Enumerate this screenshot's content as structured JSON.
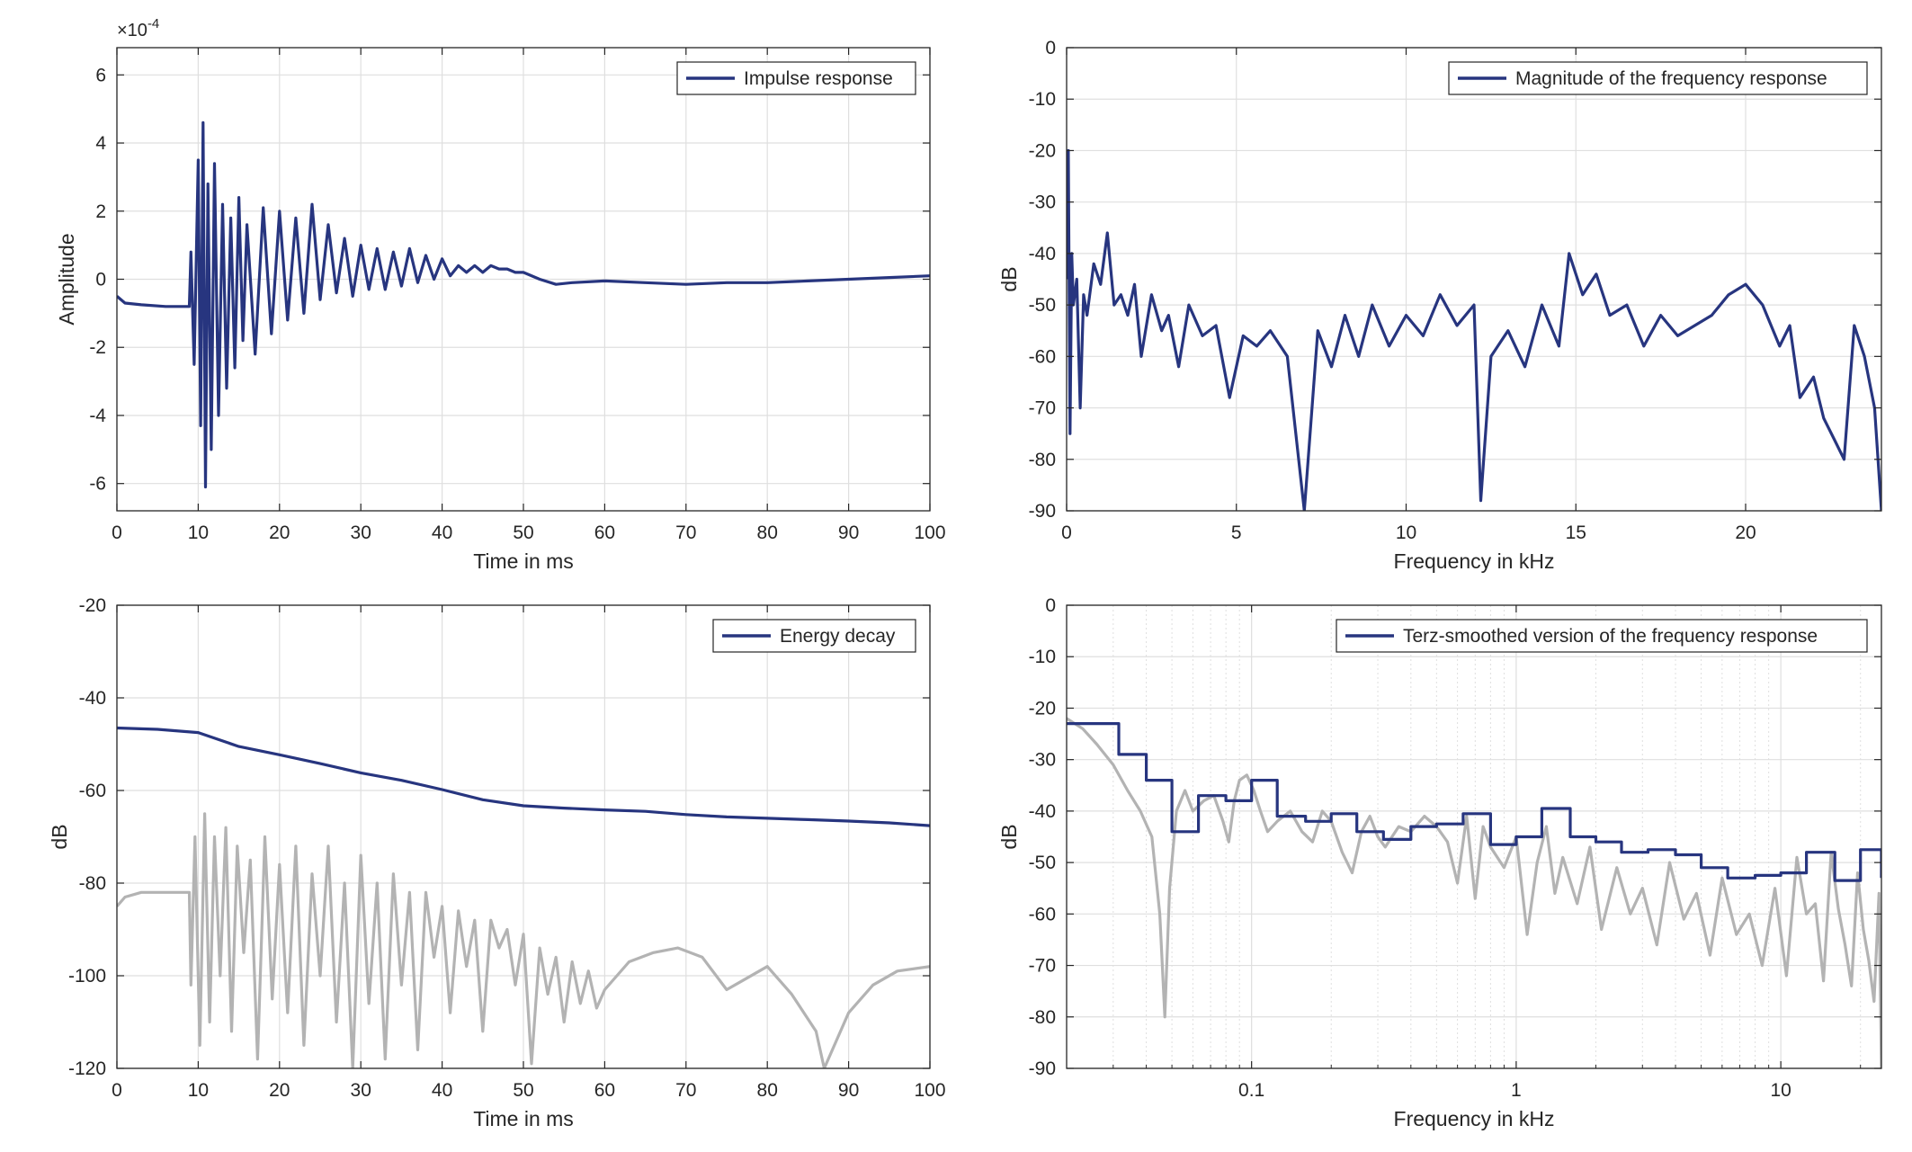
{
  "colors": {
    "series": "#27357f",
    "gray": "#b3b3b3",
    "grid": "#dfdfdf",
    "axis": "#262626"
  },
  "chart_data": [
    {
      "id": "impulse",
      "type": "line",
      "xlabel": "Time in ms",
      "ylabel": "Amplitude",
      "exponent_label": "×10",
      "exponent_power": "-4",
      "xlim": [
        0,
        100
      ],
      "ylim": [
        -6.8,
        6.8
      ],
      "xticks": [
        0,
        10,
        20,
        30,
        40,
        50,
        60,
        70,
        80,
        90,
        100
      ],
      "yticks": [
        -6,
        -4,
        -2,
        0,
        2,
        4,
        6
      ],
      "grid": true,
      "legend": "top-right",
      "series": [
        {
          "name": "Impulse response",
          "color": "series",
          "x": [
            0,
            1,
            3,
            6,
            8.9,
            9.1,
            9.5,
            10,
            10.3,
            10.6,
            10.9,
            11.2,
            11.6,
            12,
            12.5,
            13,
            13.5,
            14,
            14.5,
            15,
            15.5,
            16,
            17,
            18,
            19,
            20,
            21,
            22,
            23,
            24,
            25,
            26,
            27,
            28,
            29,
            30,
            31,
            32,
            33,
            34,
            35,
            36,
            37,
            38,
            39,
            40,
            41,
            42,
            43,
            44,
            45,
            46,
            47,
            48,
            49,
            50,
            52,
            54,
            56,
            60,
            65,
            70,
            75,
            80,
            85,
            90,
            95,
            100
          ],
          "y": [
            -0.5,
            -0.7,
            -0.75,
            -0.8,
            -0.8,
            0.8,
            -2.5,
            3.5,
            -4.3,
            4.6,
            -6.1,
            2.8,
            -5.0,
            3.4,
            -4.0,
            2.2,
            -3.2,
            1.8,
            -2.6,
            2.4,
            -1.8,
            1.6,
            -2.2,
            2.1,
            -1.6,
            2.0,
            -1.2,
            1.8,
            -1.0,
            2.2,
            -0.6,
            1.6,
            -0.4,
            1.2,
            -0.5,
            1.0,
            -0.3,
            0.9,
            -0.3,
            0.8,
            -0.2,
            0.9,
            -0.1,
            0.7,
            0.0,
            0.6,
            0.1,
            0.4,
            0.2,
            0.4,
            0.2,
            0.4,
            0.3,
            0.3,
            0.2,
            0.2,
            0.0,
            -0.15,
            -0.1,
            -0.05,
            -0.1,
            -0.15,
            -0.1,
            -0.1,
            -0.05,
            0.0,
            0.05,
            0.1
          ]
        }
      ]
    },
    {
      "id": "magnitude",
      "type": "line",
      "xlabel": "Frequency in kHz",
      "ylabel": "dB",
      "xlim": [
        0,
        24
      ],
      "ylim": [
        -90,
        0
      ],
      "xticks": [
        0,
        5,
        10,
        15,
        20
      ],
      "yticks": [
        -90,
        -80,
        -70,
        -60,
        -50,
        -40,
        -30,
        -20,
        -10,
        0
      ],
      "grid": true,
      "legend": "top-right",
      "series": [
        {
          "name": "Magnitude of the frequency response",
          "color": "series",
          "x": [
            0,
            0.05,
            0.1,
            0.15,
            0.2,
            0.3,
            0.4,
            0.5,
            0.6,
            0.8,
            1,
            1.2,
            1.4,
            1.6,
            1.8,
            2,
            2.2,
            2.5,
            2.8,
            3,
            3.3,
            3.6,
            4,
            4.4,
            4.8,
            5.2,
            5.6,
            6,
            6.5,
            7,
            7.4,
            7.8,
            8.2,
            8.6,
            9,
            9.5,
            10,
            10.5,
            11,
            11.5,
            12,
            12.2,
            12.5,
            13,
            13.5,
            14,
            14.5,
            14.8,
            15.2,
            15.6,
            16,
            16.5,
            17,
            17.5,
            18,
            18.5,
            19,
            19.5,
            20,
            20.5,
            21,
            21.3,
            21.6,
            22,
            22.3,
            22.6,
            22.9,
            23.2,
            23.5,
            23.8,
            24
          ],
          "y": [
            -45,
            -20,
            -75,
            -40,
            -50,
            -45,
            -70,
            -48,
            -52,
            -42,
            -46,
            -36,
            -50,
            -48,
            -52,
            -46,
            -60,
            -48,
            -55,
            -52,
            -62,
            -50,
            -56,
            -54,
            -68,
            -56,
            -58,
            -55,
            -60,
            -90,
            -55,
            -62,
            -52,
            -60,
            -50,
            -58,
            -52,
            -56,
            -48,
            -54,
            -50,
            -88,
            -60,
            -55,
            -62,
            -50,
            -58,
            -40,
            -48,
            -44,
            -52,
            -50,
            -58,
            -52,
            -56,
            -54,
            -52,
            -48,
            -46,
            -50,
            -58,
            -54,
            -68,
            -64,
            -72,
            -76,
            -80,
            -54,
            -60,
            -70,
            -90
          ]
        }
      ]
    },
    {
      "id": "energy",
      "type": "line",
      "xlabel": "Time in ms",
      "ylabel": "dB",
      "xlim": [
        0,
        100
      ],
      "ylim": [
        -120,
        -20
      ],
      "xticks": [
        0,
        10,
        20,
        30,
        40,
        50,
        60,
        70,
        80,
        90,
        100
      ],
      "yticks": [
        -120,
        -100,
        -80,
        -60,
        -40,
        -20
      ],
      "grid": true,
      "legend": "top-right",
      "series": [
        {
          "name": "Energy decay",
          "color": "series",
          "x": [
            0,
            5,
            10,
            15,
            20,
            25,
            30,
            35,
            40,
            45,
            50,
            55,
            60,
            65,
            70,
            75,
            80,
            85,
            90,
            95,
            100
          ],
          "y": [
            -46.5,
            -46.8,
            -47.5,
            -50.5,
            -52.3,
            -54.2,
            -56.2,
            -57.8,
            -59.8,
            -62.0,
            -63.3,
            -63.8,
            -64.2,
            -64.5,
            -65.2,
            -65.7,
            -66.0,
            -66.3,
            -66.6,
            -67.0,
            -67.6
          ]
        },
        {
          "name": "",
          "color": "gray",
          "x": [
            0,
            1,
            3,
            6,
            8.9,
            9.1,
            9.6,
            10.2,
            10.8,
            11.4,
            12,
            12.7,
            13.4,
            14.1,
            14.8,
            15.6,
            16.4,
            17.3,
            18.2,
            19.1,
            20,
            21,
            22,
            23,
            24,
            25,
            26,
            27,
            28,
            29,
            30,
            31,
            32,
            33,
            34,
            35,
            36,
            37,
            38,
            39,
            40,
            41,
            42,
            43,
            44,
            45,
            46,
            47,
            48,
            49,
            50,
            51,
            52,
            53,
            54,
            55,
            56,
            57,
            58,
            59,
            60,
            63,
            66,
            69,
            72,
            75,
            77,
            80,
            83,
            86,
            87,
            90,
            93,
            96,
            100
          ],
          "y": [
            -85,
            -83,
            -82,
            -82,
            -82,
            -102,
            -70,
            -115,
            -65,
            -110,
            -70,
            -100,
            -68,
            -112,
            -72,
            -95,
            -75,
            -118,
            -70,
            -105,
            -76,
            -108,
            -72,
            -115,
            -78,
            -100,
            -72,
            -110,
            -80,
            -120,
            -74,
            -106,
            -80,
            -118,
            -78,
            -102,
            -82,
            -116,
            -82,
            -96,
            -85,
            -108,
            -86,
            -98,
            -88,
            -112,
            -88,
            -94,
            -90,
            -102,
            -91,
            -119,
            -94,
            -104,
            -96,
            -110,
            -97,
            -106,
            -99,
            -107,
            -103,
            -97,
            -95,
            -94,
            -96,
            -103,
            -101,
            -98,
            -104,
            -112,
            -120,
            -108,
            -102,
            -99,
            -98
          ]
        }
      ]
    },
    {
      "id": "terz",
      "type": "line",
      "xscale": "log",
      "xlabel": "Frequency in kHz",
      "ylabel": "dB",
      "xlim": [
        0.02,
        24
      ],
      "ylim": [
        -90,
        0
      ],
      "xticks": [
        0.1,
        1,
        10
      ],
      "xticklabels": [
        "0.1",
        "1",
        "10"
      ],
      "yticks": [
        -90,
        -80,
        -70,
        -60,
        -50,
        -40,
        -30,
        -20,
        -10,
        0
      ],
      "grid": true,
      "legend": "top-right",
      "series": [
        {
          "name": "Terz-smoothed version of the frequency response",
          "color": "series",
          "step": true,
          "x": [
            0.02,
            0.025,
            0.0315,
            0.04,
            0.05,
            0.063,
            0.08,
            0.1,
            0.125,
            0.16,
            0.2,
            0.25,
            0.315,
            0.4,
            0.5,
            0.63,
            0.8,
            1,
            1.25,
            1.6,
            2,
            2.5,
            3.15,
            4,
            5,
            6.3,
            8,
            10,
            12.5,
            16,
            20,
            24
          ],
          "y": [
            -23,
            -23,
            -29,
            -34,
            -44,
            -37,
            -38,
            -34,
            -41,
            -42,
            -40.5,
            -44,
            -45.5,
            -43,
            -42.5,
            -40.5,
            -46.5,
            -45,
            -39.5,
            -45,
            -46,
            -48,
            -47.5,
            -48.5,
            -51,
            -53,
            -52.5,
            -52,
            -48,
            -53.5,
            -47.5,
            -53
          ]
        },
        {
          "name": "",
          "color": "gray",
          "x": [
            0.02,
            0.023,
            0.026,
            0.03,
            0.034,
            0.038,
            0.042,
            0.045,
            0.047,
            0.049,
            0.052,
            0.056,
            0.06,
            0.066,
            0.072,
            0.078,
            0.082,
            0.086,
            0.09,
            0.096,
            0.102,
            0.108,
            0.115,
            0.125,
            0.14,
            0.155,
            0.17,
            0.185,
            0.2,
            0.22,
            0.24,
            0.26,
            0.28,
            0.3,
            0.32,
            0.36,
            0.4,
            0.45,
            0.5,
            0.55,
            0.6,
            0.65,
            0.7,
            0.75,
            0.8,
            0.9,
            1,
            1.1,
            1.2,
            1.3,
            1.4,
            1.5,
            1.7,
            1.9,
            2.1,
            2.4,
            2.7,
            3,
            3.4,
            3.8,
            4.3,
            4.8,
            5.4,
            6,
            6.8,
            7.6,
            8.5,
            9.5,
            10.5,
            11.5,
            12.5,
            13.5,
            14.5,
            15.5,
            16.5,
            17.5,
            18.5,
            19.5,
            20.5,
            21.5,
            22.5,
            23.5,
            24
          ],
          "y": [
            -22,
            -24,
            -27,
            -31,
            -36,
            -40,
            -45,
            -60,
            -80,
            -55,
            -40,
            -36,
            -40,
            -38,
            -37,
            -42,
            -46,
            -38,
            -34,
            -33,
            -36,
            -40,
            -44,
            -42,
            -40,
            -44,
            -46,
            -40,
            -42,
            -48,
            -52,
            -44,
            -41,
            -45,
            -47,
            -43,
            -44,
            -41,
            -43,
            -46,
            -54,
            -41,
            -57,
            -43,
            -47,
            -51,
            -45,
            -64,
            -50,
            -43,
            -56,
            -49,
            -58,
            -47,
            -63,
            -51,
            -60,
            -55,
            -66,
            -50,
            -61,
            -56,
            -68,
            -53,
            -64,
            -60,
            -70,
            -55,
            -72,
            -49,
            -60,
            -58,
            -73,
            -48,
            -59,
            -66,
            -74,
            -52,
            -63,
            -69,
            -77,
            -56,
            -90
          ]
        }
      ]
    }
  ]
}
